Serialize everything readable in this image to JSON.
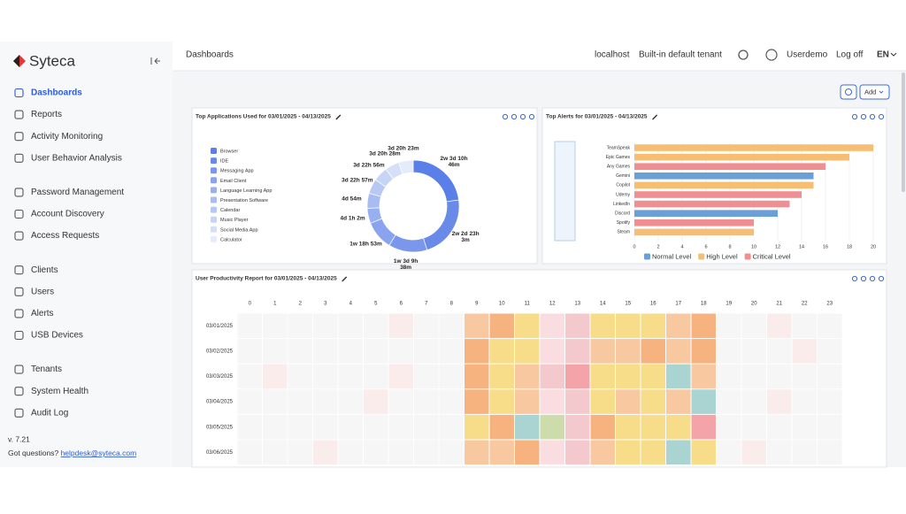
{
  "brand": "Syteca",
  "nav": [
    [
      "Dashboards",
      "Reports",
      "Activity Monitoring",
      "User Behavior Analysis"
    ],
    [
      "Password Management",
      "Account Discovery",
      "Access Requests"
    ],
    [
      "Clients",
      "Users",
      "Alerts",
      "USB Devices"
    ],
    [
      "Tenants",
      "System Health",
      "Audit Log"
    ]
  ],
  "version": "v. 7.21",
  "help_text": "Got questions?",
  "help_email": "helpdesk@syteca.com",
  "header": {
    "title": "Dashboards",
    "host": "localhost",
    "tenant": "Built-in default tenant",
    "user": "Userdemo",
    "logoff": "Log off",
    "lang": "EN"
  },
  "add_button": "Add",
  "chart_data": [
    {
      "type": "pie",
      "donut": true,
      "title": "Top Applications Used for 03/01/2025 - 04/13/2025",
      "categories": [
        "Browser",
        "IDE",
        "Messaging App",
        "Email Client",
        "Language Learning App",
        "Presentation Software",
        "Calendar",
        "Music Player",
        "Social Media App",
        "Calculator"
      ],
      "values": [
        25126,
        24423,
        14978,
        11213,
        5822,
        5814,
        5697,
        5696,
        5548,
        5543
      ],
      "value_labels": [
        "2w 3d 10h 46m",
        "2w 2d 23h 3m",
        "1w 3d 9h 38m",
        "1w 18h 53m",
        "4d 1h 2m",
        "4d 54m",
        "3d 22h 57m",
        "3d 22h 56m",
        "3d 20h 28m",
        "3d 20h 23m"
      ],
      "colors": [
        "#5b7fe8",
        "#6a8aea",
        "#7a97ec",
        "#8aa3ee",
        "#99b0f0",
        "#a8bcf2",
        "#b7c8f4",
        "#c6d4f6",
        "#d5e0f8",
        "#e4ebfa"
      ]
    },
    {
      "type": "hbar",
      "title": "Top Alerts for 03/01/2025 - 04/13/2025",
      "categories": [
        "TeamSpeak",
        "Epic Games",
        "Any Games",
        "Gemini",
        "Copilot",
        "Udemy",
        "LinkedIn",
        "Discord",
        "Spotify",
        "Steam"
      ],
      "series": [
        {
          "name": "Normal Level",
          "color": "#6b9fd8",
          "values": [
            null,
            null,
            null,
            15,
            null,
            null,
            null,
            12,
            null,
            null
          ]
        },
        {
          "name": "High Level",
          "color": "#f7bd72",
          "values": [
            20,
            18,
            null,
            null,
            15,
            null,
            null,
            null,
            null,
            10
          ]
        },
        {
          "name": "Critical Level",
          "color": "#f08f92",
          "values": [
            null,
            null,
            16,
            null,
            null,
            14,
            13,
            null,
            10,
            null
          ]
        }
      ],
      "xlim": [
        0,
        20
      ],
      "xticks": [
        0,
        2,
        4,
        6,
        8,
        10,
        12,
        14,
        16,
        18,
        20
      ],
      "grid": true,
      "legend": "bottom"
    },
    {
      "type": "heatmap",
      "title": "User Productivity Report for 03/01/2025 - 04/13/2025",
      "x": [
        0,
        1,
        2,
        3,
        4,
        5,
        6,
        7,
        8,
        9,
        10,
        11,
        12,
        13,
        14,
        15,
        16,
        17,
        18,
        19,
        20,
        21,
        22,
        23
      ],
      "y": [
        "03/01/2025",
        "03/02/2025",
        "03/03/2025",
        "03/04/2025",
        "03/05/2025",
        "03/06/2025"
      ],
      "palette": [
        "#f6f6f7",
        "#fbecec",
        "#f9dde0",
        "#f8c8a0",
        "#f6b380",
        "#f7dc8a",
        "#a9d4d2",
        "#cddcaa",
        "#f4a3a8",
        "#f4c9cd"
      ],
      "values": [
        [
          0,
          0,
          0,
          0,
          0,
          0,
          1,
          0,
          0,
          3,
          4,
          5,
          2,
          9,
          5,
          5,
          5,
          3,
          4,
          0,
          0,
          1,
          0,
          0
        ],
        [
          0,
          0,
          0,
          0,
          0,
          0,
          0,
          0,
          0,
          4,
          5,
          5,
          2,
          9,
          3,
          3,
          4,
          3,
          4,
          0,
          0,
          0,
          1,
          0
        ],
        [
          0,
          1,
          0,
          0,
          0,
          0,
          1,
          0,
          0,
          4,
          5,
          3,
          9,
          8,
          5,
          5,
          5,
          6,
          3,
          0,
          0,
          0,
          0,
          0
        ],
        [
          0,
          0,
          0,
          0,
          0,
          1,
          0,
          0,
          0,
          4,
          5,
          3,
          2,
          9,
          5,
          3,
          5,
          3,
          6,
          0,
          0,
          1,
          0,
          0
        ],
        [
          0,
          0,
          0,
          0,
          0,
          0,
          0,
          0,
          0,
          5,
          4,
          6,
          7,
          9,
          4,
          5,
          5,
          5,
          8,
          0,
          0,
          0,
          0,
          0
        ],
        [
          0,
          0,
          0,
          1,
          0,
          0,
          0,
          0,
          0,
          3,
          3,
          4,
          2,
          9,
          3,
          5,
          5,
          6,
          5,
          0,
          1,
          0,
          0,
          0
        ]
      ]
    }
  ]
}
